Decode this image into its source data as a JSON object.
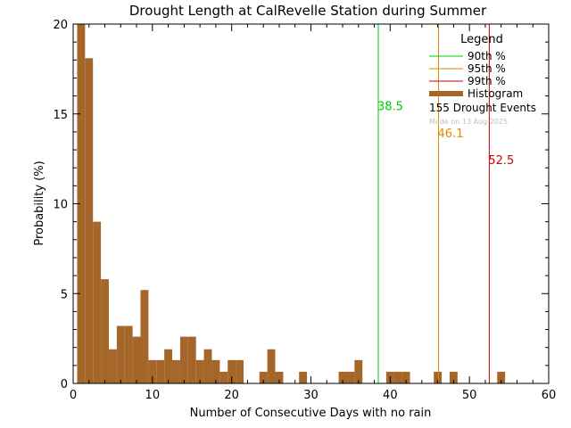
{
  "chart_data": {
    "type": "bar",
    "title": "Drought Length at CalRevelle Station during Summer",
    "xlabel": "Number of Consecutive Days with no rain",
    "ylabel": "Probability (%)",
    "xlim": [
      0,
      60
    ],
    "ylim": [
      0,
      20
    ],
    "xticks": [
      "0",
      "10",
      "20",
      "30",
      "40",
      "50",
      "60"
    ],
    "yticks": [
      "0",
      "5",
      "10",
      "15",
      "20"
    ],
    "bar_color": "#a5662a",
    "bin_width": 1,
    "bins": [
      {
        "x": 1,
        "value": 20.0
      },
      {
        "x": 2,
        "value": 18.1
      },
      {
        "x": 3,
        "value": 9.0
      },
      {
        "x": 4,
        "value": 5.8
      },
      {
        "x": 5,
        "value": 1.9
      },
      {
        "x": 6,
        "value": 3.2
      },
      {
        "x": 7,
        "value": 3.2
      },
      {
        "x": 8,
        "value": 2.6
      },
      {
        "x": 9,
        "value": 5.2
      },
      {
        "x": 10,
        "value": 1.3
      },
      {
        "x": 11,
        "value": 1.3
      },
      {
        "x": 12,
        "value": 1.9
      },
      {
        "x": 13,
        "value": 1.3
      },
      {
        "x": 14,
        "value": 2.6
      },
      {
        "x": 15,
        "value": 2.6
      },
      {
        "x": 16,
        "value": 1.3
      },
      {
        "x": 17,
        "value": 1.9
      },
      {
        "x": 18,
        "value": 1.3
      },
      {
        "x": 19,
        "value": 0.65
      },
      {
        "x": 20,
        "value": 1.3
      },
      {
        "x": 21,
        "value": 1.3
      },
      {
        "x": 24,
        "value": 0.65
      },
      {
        "x": 25,
        "value": 1.9
      },
      {
        "x": 26,
        "value": 0.65
      },
      {
        "x": 29,
        "value": 0.65
      },
      {
        "x": 34,
        "value": 0.65
      },
      {
        "x": 35,
        "value": 0.65
      },
      {
        "x": 36,
        "value": 1.3
      },
      {
        "x": 40,
        "value": 0.65
      },
      {
        "x": 41,
        "value": 0.65
      },
      {
        "x": 42,
        "value": 0.65
      },
      {
        "x": 46,
        "value": 0.65
      },
      {
        "x": 48,
        "value": 0.65
      },
      {
        "x": 54,
        "value": 0.65
      }
    ],
    "percentile_lines": [
      {
        "name": "90th %",
        "value": 38.5,
        "label": "38.5",
        "color": "#00cc00",
        "label_y": 15.2
      },
      {
        "name": "95th %",
        "value": 46.1,
        "label": "46.1",
        "color": "#e08a00",
        "label_y": 13.7
      },
      {
        "name": "99th %",
        "value": 52.5,
        "label": "52.5",
        "color": "#cc0000",
        "label_y": 12.2
      }
    ],
    "legend": {
      "title": "Legend",
      "placement": "top-right",
      "entries": [
        {
          "label": "90th %",
          "color": "#00cc00",
          "kind": "line"
        },
        {
          "label": "95th %",
          "color": "#e08a00",
          "kind": "line"
        },
        {
          "label": "99th %",
          "color": "#cc0000",
          "kind": "line"
        },
        {
          "label": "Histogram",
          "color": "#a5662a",
          "kind": "bar"
        }
      ],
      "event_count": "155 Drought Events",
      "made_on": "Made on 13 Aug 2025"
    },
    "grid": false
  }
}
